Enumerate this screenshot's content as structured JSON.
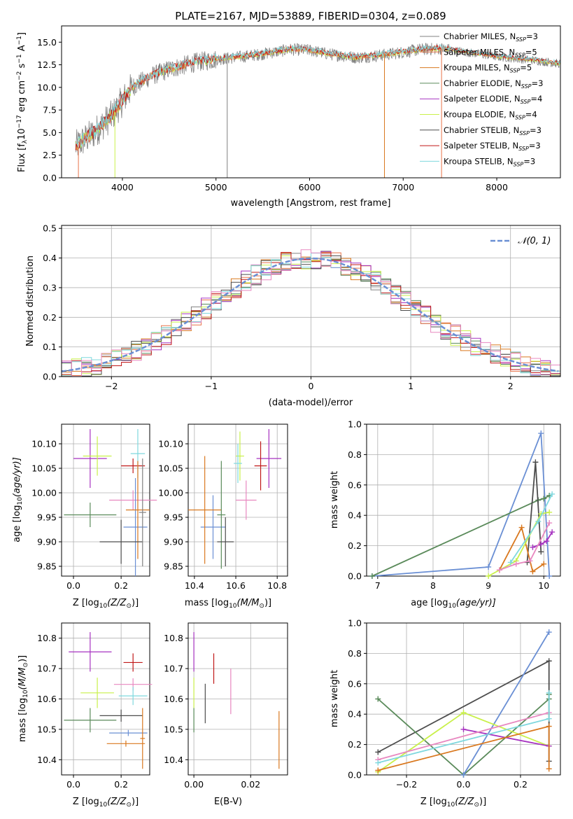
{
  "colors": {
    "chabrier_miles": "#808080",
    "salpeter_miles": "#e8734a",
    "kroupa_miles": "#d9781f",
    "chabrier_elodie": "#5a8a5a",
    "salpeter_elodie": "#a632c0",
    "kroupa_elodie": "#c9f04a",
    "chabrier_stelib": "#4d4d4d",
    "salpeter_stelib": "#c01818",
    "kroupa_stelib": "#7fd8de",
    "blue_model": "#6a8fd4",
    "pink_model": "#e888c0",
    "gaussian": "#6a8fd4"
  },
  "chart_data": [
    {
      "id": "spectrum",
      "type": "line",
      "title": "PLATE=2167, MJD=53889, FIBERID=0304, z=0.089",
      "xlabel": "wavelength [Angstrom, rest frame]",
      "ylabel": "Flux [f",
      "ylabel_sub": "λ",
      "ylabel_rest": "10",
      "ylabel_exp": "−17",
      "ylabel_units": " erg cm",
      "ylabel_cm_exp": "−2",
      "ylabel_s": " s",
      "ylabel_s_exp": "−1",
      "ylabel_A": " A",
      "ylabel_A_exp": "−1",
      "ylabel_end": "]",
      "xlim": [
        3350,
        8680
      ],
      "ylim": [
        0,
        16.8
      ],
      "xticks": [
        "4000",
        "5000",
        "6000",
        "7000",
        "8000"
      ],
      "xtick_values": [
        4000,
        5000,
        6000,
        7000,
        8000
      ],
      "yticks": [
        "0.0",
        "2.5",
        "5.0",
        "7.5",
        "10.0",
        "12.5",
        "15.0"
      ],
      "ytick_values": [
        0,
        2.5,
        5,
        7.5,
        10,
        12.5,
        15
      ],
      "legend_position": "upper right",
      "legend": [
        {
          "label": "Chabrier MILES, N",
          "sub": "SSP",
          "val": "=3",
          "color_key": "chabrier_miles"
        },
        {
          "label": "Salpeter MILES, N",
          "sub": "SSP",
          "val": "=5",
          "color_key": "salpeter_miles"
        },
        {
          "label": "Kroupa MILES, N",
          "sub": "SSP",
          "val": "=5",
          "color_key": "kroupa_miles"
        },
        {
          "label": "Chabrier ELODIE, N",
          "sub": "SSP",
          "val": "=3",
          "color_key": "chabrier_elodie"
        },
        {
          "label": "Salpeter ELODIE, N",
          "sub": "SSP",
          "val": "=4",
          "color_key": "salpeter_elodie"
        },
        {
          "label": "Kroupa ELODIE, N",
          "sub": "SSP",
          "val": "=4",
          "color_key": "kroupa_elodie"
        },
        {
          "label": "Chabrier STELIB, N",
          "sub": "SSP",
          "val": "=3",
          "color_key": "chabrier_stelib"
        },
        {
          "label": "Salpeter STELIB, N",
          "sub": "SSP",
          "val": "=3",
          "color_key": "salpeter_stelib"
        },
        {
          "label": "Kroupa STELIB, N",
          "sub": "SSP",
          "val": "=3",
          "color_key": "kroupa_stelib"
        }
      ],
      "continuum_x": [
        3500,
        3700,
        3900,
        4000,
        4100,
        4300,
        4500,
        4800,
        5000,
        5200,
        5500,
        5800,
        6000,
        6200,
        6500,
        6800,
        7000,
        7200,
        7400,
        7600,
        8000,
        8400,
        8680
      ],
      "continuum_y": [
        3.5,
        5.0,
        7.0,
        8.5,
        10.0,
        11.2,
        12.0,
        12.8,
        13.1,
        13.3,
        13.7,
        14.2,
        14.1,
        13.7,
        13.3,
        13.6,
        13.9,
        14.2,
        14.3,
        14.0,
        13.4,
        13.0,
        12.6
      ]
    },
    {
      "id": "residual_hist",
      "type": "line",
      "xlabel": "(data-model)/error",
      "ylabel": "Normed distribution",
      "xlim": [
        -2.5,
        2.5
      ],
      "ylim": [
        0,
        0.51
      ],
      "xticks": [
        "−2",
        "−1",
        "0",
        "1",
        "2"
      ],
      "xtick_values": [
        -2,
        -1,
        0,
        1,
        2
      ],
      "yticks": [
        "0.0",
        "0.1",
        "0.2",
        "0.3",
        "0.4",
        "0.5"
      ],
      "ytick_values": [
        0,
        0.1,
        0.2,
        0.3,
        0.4,
        0.5
      ],
      "legend_position": "upper right",
      "gaussian_label": "𝒩(0, 1)",
      "bin_width": 0.1,
      "bin_start": -2.5
    },
    {
      "id": "age_vs_Z",
      "type": "scatter",
      "xlabel": "Z [log",
      "xlabel_sub": "10",
      "xlabel_rest": "(Z/Z",
      "xlabel_sun": "⊙",
      "xlabel_end": ")]",
      "ylabel": "age  [log",
      "ylabel_sub": "10",
      "ylabel_rest": "(age/yr)]",
      "xlim": [
        -0.05,
        0.32
      ],
      "ylim": [
        9.83,
        10.14
      ],
      "xticks": [
        "0.0",
        "0.2"
      ],
      "xtick_values": [
        0,
        0.2
      ],
      "yticks": [
        "9.85",
        "9.90",
        "9.95",
        "10.00",
        "10.05",
        "10.10"
      ],
      "ytick_values": [
        9.85,
        9.9,
        9.95,
        10.0,
        10.05,
        10.1
      ],
      "points": [
        {
          "x": 0.07,
          "xerr": 0.07,
          "y": 10.07,
          "yerr": 0.06,
          "c": "salpeter_elodie"
        },
        {
          "x": 0.1,
          "xerr": 0.06,
          "y": 10.075,
          "yerr": 0.04,
          "c": "kroupa_elodie"
        },
        {
          "x": 0.07,
          "xerr": 0.11,
          "y": 9.955,
          "yerr": 0.025,
          "c": "chabrier_elodie"
        },
        {
          "x": 0.25,
          "xerr": 0.05,
          "y": 10.055,
          "yerr": 0.015,
          "c": "salpeter_stelib"
        },
        {
          "x": 0.27,
          "xerr": 0.03,
          "y": 10.08,
          "yerr": 0.05,
          "c": "kroupa_stelib"
        },
        {
          "x": 0.25,
          "xerr": 0.1,
          "y": 9.985,
          "yerr": 0.02,
          "c": "pink_model"
        },
        {
          "x": 0.26,
          "xerr": 0.05,
          "y": 9.93,
          "yerr": 0.1,
          "c": "blue_model"
        },
        {
          "x": 0.27,
          "xerr": 0.05,
          "y": 9.965,
          "yerr": 0.1,
          "c": "kroupa_miles"
        },
        {
          "x": 0.2,
          "xerr": 0.09,
          "y": 9.9,
          "yerr": 0.045,
          "c": "chabrier_stelib"
        },
        {
          "x": 0.29,
          "xerr": 0.015,
          "y": 9.96,
          "yerr": 0.11,
          "c": "chabrier_miles"
        }
      ]
    },
    {
      "id": "age_vs_mass",
      "type": "scatter",
      "xlabel": "mass [log",
      "xlabel_sub": "10",
      "xlabel_rest": "(M/M",
      "xlabel_sun": "⊙",
      "xlabel_end": ")]",
      "xlim": [
        10.37,
        10.85
      ],
      "ylim": [
        9.83,
        10.14
      ],
      "xticks": [
        "10.4",
        "10.6",
        "10.8"
      ],
      "xtick_values": [
        10.4,
        10.6,
        10.8
      ],
      "yticks": [
        "9.85",
        "9.90",
        "9.95",
        "10.00",
        "10.05",
        "10.10"
      ],
      "ytick_values": [
        9.85,
        9.9,
        9.95,
        10.0,
        10.05,
        10.1
      ],
      "points": [
        {
          "x": 10.76,
          "xerr": 0.06,
          "y": 10.07,
          "yerr": 0.06,
          "c": "salpeter_elodie"
        },
        {
          "x": 10.62,
          "xerr": 0.02,
          "y": 10.075,
          "yerr": 0.05,
          "c": "kroupa_elodie"
        },
        {
          "x": 10.61,
          "xerr": 0.02,
          "y": 10.06,
          "yerr": 0.04,
          "c": "kroupa_stelib"
        },
        {
          "x": 10.72,
          "xerr": 0.03,
          "y": 10.055,
          "yerr": 0.05,
          "c": "salpeter_stelib"
        },
        {
          "x": 10.65,
          "xerr": 0.05,
          "y": 9.985,
          "yerr": 0.04,
          "c": "pink_model"
        },
        {
          "x": 10.49,
          "xerr": 0.06,
          "y": 9.93,
          "yerr": 0.065,
          "c": "blue_model"
        },
        {
          "x": 10.45,
          "xerr": 0.08,
          "y": 9.965,
          "yerr": 0.11,
          "c": "kroupa_miles"
        },
        {
          "x": 10.53,
          "xerr": 0.02,
          "y": 9.955,
          "yerr": 0.11,
          "c": "chabrier_elodie"
        },
        {
          "x": 10.55,
          "xerr": 0.04,
          "y": 9.9,
          "yerr": 0.05,
          "c": "chabrier_stelib"
        }
      ]
    },
    {
      "id": "massweight_vs_age",
      "type": "line",
      "xlabel": "age  [log",
      "xlabel_sub": "10",
      "xlabel_rest": "(age/yr)]",
      "ylabel": "mass weight",
      "xlim": [
        6.8,
        10.3
      ],
      "ylim": [
        0,
        1.0
      ],
      "xticks": [
        "7",
        "8",
        "9",
        "10"
      ],
      "xtick_values": [
        7,
        8,
        9,
        10
      ],
      "yticks": [
        "0.0",
        "0.2",
        "0.4",
        "0.6",
        "0.8",
        "1.0"
      ],
      "ytick_values": [
        0,
        0.2,
        0.4,
        0.6,
        0.8,
        1.0
      ],
      "series": [
        {
          "c": "blue_model",
          "x": [
            6.9,
            9.0,
            9.95,
            10.1
          ],
          "y": [
            0.0,
            0.06,
            0.94,
            0.0
          ]
        },
        {
          "c": "chabrier_elodie",
          "x": [
            6.9,
            9.9,
            10.0,
            10.1
          ],
          "y": [
            0.0,
            0.5,
            0.51,
            0.53
          ]
        },
        {
          "c": "chabrier_stelib",
          "x": [
            9.7,
            9.85,
            9.95
          ],
          "y": [
            0.09,
            0.75,
            0.16
          ]
        },
        {
          "c": "kroupa_miles",
          "x": [
            9.2,
            9.6,
            9.8,
            10.0
          ],
          "y": [
            0.04,
            0.32,
            0.03,
            0.08
          ]
        },
        {
          "c": "salpeter_elodie",
          "x": [
            9.8,
            9.95,
            10.05,
            10.15
          ],
          "y": [
            0.19,
            0.21,
            0.23,
            0.29
          ]
        },
        {
          "c": "kroupa_elodie",
          "x": [
            9.0,
            9.5,
            9.95,
            10.1
          ],
          "y": [
            0.0,
            0.1,
            0.41,
            0.42
          ]
        },
        {
          "c": "pink_model",
          "x": [
            9.2,
            9.5,
            9.75,
            10.1
          ],
          "y": [
            0.04,
            0.08,
            0.1,
            0.35
          ]
        },
        {
          "c": "kroupa_stelib",
          "x": [
            9.4,
            9.9,
            10.15
          ],
          "y": [
            0.09,
            0.36,
            0.54
          ]
        }
      ]
    },
    {
      "id": "mass_vs_Z",
      "type": "scatter",
      "xlabel": "Z [log",
      "xlabel_sub": "10",
      "xlabel_rest": "(Z/Z",
      "xlabel_sun": "⊙",
      "xlabel_end": ")]",
      "ylabel": "mass [log",
      "ylabel_sub": "10",
      "ylabel_rest": "(M/M",
      "ylabel_sun": "⊙",
      "ylabel_end": ")]",
      "xlim": [
        -0.05,
        0.32
      ],
      "ylim": [
        10.35,
        10.85
      ],
      "xticks": [
        "0.0",
        "0.2"
      ],
      "xtick_values": [
        0,
        0.2
      ],
      "yticks": [
        "10.4",
        "10.5",
        "10.6",
        "10.7",
        "10.8"
      ],
      "ytick_values": [
        10.4,
        10.5,
        10.6,
        10.7,
        10.8
      ],
      "points": [
        {
          "x": 0.07,
          "xerr": 0.09,
          "y": 10.755,
          "yerr": 0.065,
          "c": "salpeter_elodie"
        },
        {
          "x": 0.25,
          "xerr": 0.04,
          "y": 10.72,
          "yerr": 0.03,
          "c": "salpeter_stelib"
        },
        {
          "x": 0.1,
          "xerr": 0.07,
          "y": 10.62,
          "yerr": 0.05,
          "c": "kroupa_elodie"
        },
        {
          "x": 0.25,
          "xerr": 0.08,
          "y": 10.648,
          "yerr": 0.02,
          "c": "pink_model"
        },
        {
          "x": 0.25,
          "xerr": 0.06,
          "y": 10.61,
          "yerr": 0.03,
          "c": "kroupa_stelib"
        },
        {
          "x": 0.07,
          "xerr": 0.11,
          "y": 10.53,
          "yerr": 0.04,
          "c": "chabrier_elodie"
        },
        {
          "x": 0.2,
          "xerr": 0.09,
          "y": 10.545,
          "yerr": 0.02,
          "c": "chabrier_stelib"
        },
        {
          "x": 0.23,
          "xerr": 0.08,
          "y": 10.488,
          "yerr": 0.01,
          "c": "blue_model"
        },
        {
          "x": 0.22,
          "xerr": 0.08,
          "y": 10.453,
          "yerr": 0.01,
          "c": "kroupa_miles"
        },
        {
          "x": 0.29,
          "xerr": 0.01,
          "y": 10.47,
          "yerr": 0.1,
          "c": "kroupa_miles"
        }
      ]
    },
    {
      "id": "mass_vs_EBV",
      "type": "scatter",
      "xlabel": "E(B-V)",
      "xlim": [
        -0.002,
        0.033
      ],
      "ylim": [
        10.35,
        10.85
      ],
      "xticks": [
        "0.00",
        "0.02"
      ],
      "xtick_values": [
        0,
        0.02
      ],
      "yticks": [
        "10.4",
        "10.5",
        "10.6",
        "10.7",
        "10.8"
      ],
      "ytick_values": [
        10.4,
        10.5,
        10.6,
        10.7,
        10.8
      ],
      "points": [
        {
          "x": 0.0,
          "xerr": 0,
          "y": 10.755,
          "yerr": 0.065,
          "c": "salpeter_elodie"
        },
        {
          "x": 0.0,
          "xerr": 0,
          "y": 10.62,
          "yerr": 0.05,
          "c": "kroupa_elodie"
        },
        {
          "x": 0.0,
          "xerr": 0,
          "y": 10.53,
          "yerr": 0.04,
          "c": "chabrier_elodie"
        },
        {
          "x": 0.007,
          "xerr": 0,
          "y": 10.7,
          "yerr": 0.05,
          "c": "salpeter_stelib"
        },
        {
          "x": 0.004,
          "xerr": 0,
          "y": 10.585,
          "yerr": 0.065,
          "c": "chabrier_stelib"
        },
        {
          "x": 0.013,
          "xerr": 0,
          "y": 10.625,
          "yerr": 0.075,
          "c": "pink_model"
        },
        {
          "x": 0.03,
          "xerr": 0,
          "y": 10.465,
          "yerr": 0.095,
          "c": "kroupa_miles"
        }
      ]
    },
    {
      "id": "massweight_vs_Z",
      "type": "line",
      "xlabel": "Z [log",
      "xlabel_sub": "10",
      "xlabel_rest": "(Z/Z",
      "xlabel_sun": "⊙",
      "xlabel_end": ")]",
      "ylabel": "mass weight",
      "xlim": [
        -0.34,
        0.34
      ],
      "ylim": [
        0,
        1.0
      ],
      "xticks": [
        "−0.2",
        "0.0",
        "0.2"
      ],
      "xtick_values": [
        -0.2,
        0,
        0.2
      ],
      "yticks": [
        "0.0",
        "0.2",
        "0.4",
        "0.6",
        "0.8",
        "1.0"
      ],
      "ytick_values": [
        0,
        0.2,
        0.4,
        0.6,
        0.8,
        1.0
      ],
      "series": [
        {
          "c": "chabrier_stelib",
          "x": [
            -0.3,
            0.3,
            0.3
          ],
          "y": [
            0.15,
            0.75,
            0.09
          ]
        },
        {
          "c": "chabrier_elodie",
          "x": [
            -0.3,
            0.0,
            0.3,
            0.3
          ],
          "y": [
            0.5,
            0.0,
            0.5,
            0.53
          ]
        },
        {
          "c": "blue_model",
          "x": [
            0.0,
            0.3
          ],
          "y": [
            0.0,
            0.94
          ]
        },
        {
          "c": "kroupa_elodie",
          "x": [
            -0.3,
            0.0,
            0.3
          ],
          "y": [
            0.02,
            0.41,
            0.19
          ]
        },
        {
          "c": "salpeter_elodie",
          "x": [
            0.0,
            0.3
          ],
          "y": [
            0.3,
            0.19
          ]
        },
        {
          "c": "pink_model",
          "x": [
            -0.3,
            0.3
          ],
          "y": [
            0.1,
            0.41
          ]
        },
        {
          "c": "kroupa_miles",
          "x": [
            -0.3,
            0.3,
            0.3
          ],
          "y": [
            0.03,
            0.32,
            0.04
          ]
        },
        {
          "c": "kroupa_stelib",
          "x": [
            -0.3,
            0.3,
            0.3
          ],
          "y": [
            0.08,
            0.37,
            0.54
          ]
        }
      ]
    }
  ]
}
